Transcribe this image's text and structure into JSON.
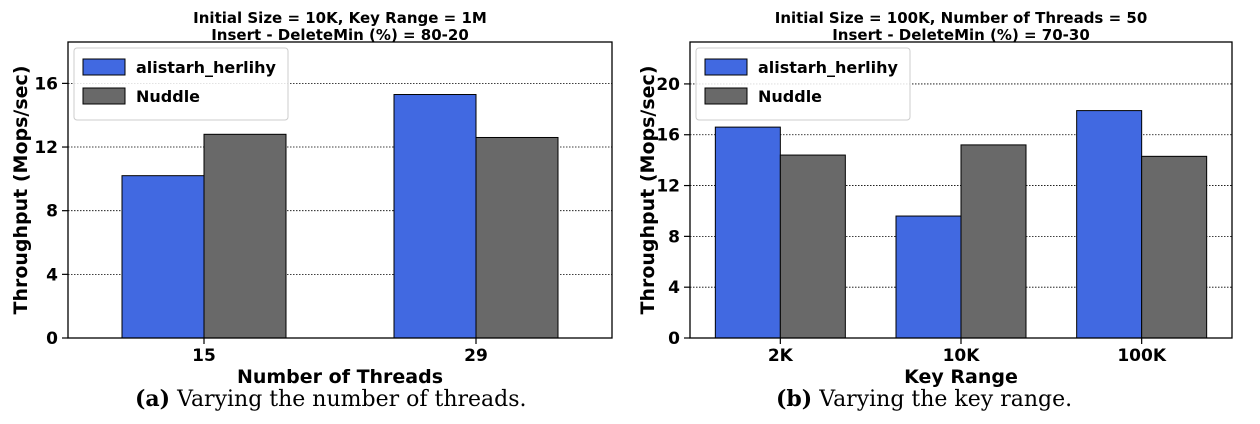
{
  "colors": {
    "alistarh_herlihy": "#4169E1",
    "Nuddle": "#696969"
  },
  "chart_data": [
    {
      "type": "bar",
      "title": [
        "Initial Size = 10K, Key Range = 1M",
        "Insert - DeleteMin (%) = 80-20"
      ],
      "xlabel": "Number of Threads",
      "ylabel": "Throughput (Mops/sec)",
      "categories": [
        "15",
        "29"
      ],
      "series": [
        {
          "name": "alistarh_herlihy",
          "values": [
            10.2,
            15.3
          ]
        },
        {
          "name": "Nuddle",
          "values": [
            12.8,
            12.6
          ]
        }
      ],
      "ylim": [
        0,
        18.6
      ],
      "yticks": [
        0,
        4,
        8,
        12,
        16
      ],
      "grid": "horizontal dotted",
      "legend": "top-left"
    },
    {
      "type": "bar",
      "title": [
        "Initial Size = 100K, Number of Threads = 50",
        "Insert - DeleteMin (%) = 70-30"
      ],
      "xlabel": "Key Range",
      "ylabel": "Throughput (Mops/sec)",
      "categories": [
        "2K",
        "10K",
        "100K"
      ],
      "series": [
        {
          "name": "alistarh_herlihy",
          "values": [
            16.6,
            9.6,
            17.9
          ]
        },
        {
          "name": "Nuddle",
          "values": [
            14.4,
            15.2,
            14.3
          ]
        }
      ],
      "ylim": [
        0,
        23.3
      ],
      "yticks": [
        0,
        4,
        8,
        12,
        16,
        20
      ],
      "grid": "horizontal dotted",
      "legend": "top-left"
    }
  ],
  "captions": [
    {
      "label": "(a)",
      "text": " Varying the number of threads."
    },
    {
      "label": "(b)",
      "text": " Varying the key range."
    }
  ]
}
